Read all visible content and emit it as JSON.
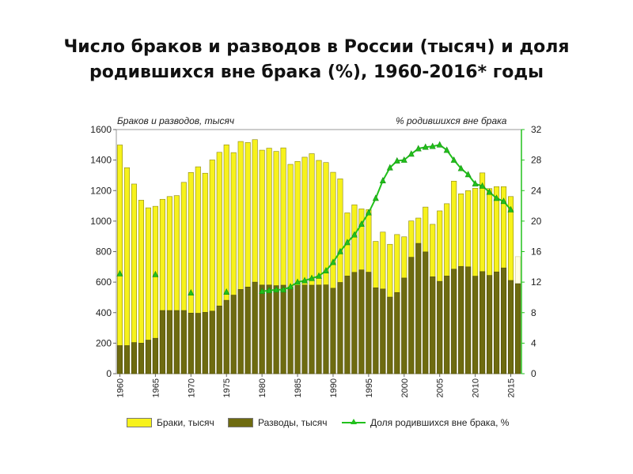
{
  "title_lines": [
    "Число браков и разводов в России (тысяч) и доля",
    "родившихся вне брака (%), 1960-2016* годы"
  ],
  "colors": {
    "marriages": "#f7f21c",
    "divorces": "#6e6b10",
    "share": "#22c01c",
    "estimate": "#fffde6"
  },
  "chart_data": {
    "type": "bar",
    "left_axis_title": "Браков и разводов, тысяч",
    "right_axis_title": "% родившихся вне брака",
    "ylim_left": [
      0,
      1600
    ],
    "yticks_left": [
      "0",
      "200",
      "400",
      "600",
      "800",
      "1000",
      "1200",
      "1400",
      "1600"
    ],
    "ylim_right": [
      0,
      32
    ],
    "yticks_right": [
      "0",
      "4",
      "8",
      "12",
      "16",
      "20",
      "24",
      "28",
      "32"
    ],
    "xtick_labels": [
      "1960",
      "1965",
      "1970",
      "1975",
      "1980",
      "1985",
      "1990",
      "1995",
      "2000",
      "2005",
      "2010",
      "2015"
    ],
    "years": [
      1960,
      1961,
      1962,
      1963,
      1964,
      1965,
      1966,
      1967,
      1968,
      1969,
      1970,
      1971,
      1972,
      1973,
      1974,
      1975,
      1976,
      1977,
      1978,
      1979,
      1980,
      1981,
      1982,
      1983,
      1984,
      1985,
      1986,
      1987,
      1988,
      1989,
      1990,
      1991,
      1992,
      1993,
      1994,
      1995,
      1996,
      1997,
      1998,
      1999,
      2000,
      2001,
      2002,
      2003,
      2004,
      2005,
      2006,
      2007,
      2008,
      2009,
      2010,
      2011,
      2012,
      2013,
      2014,
      2015,
      2016
    ],
    "series": [
      {
        "name": "Браки, тысяч",
        "values": [
          1499,
          1350,
          1243,
          1137,
          1087,
          1097,
          1143,
          1161,
          1167,
          1254,
          1319,
          1356,
          1314,
          1401,
          1451,
          1500,
          1449,
          1522,
          1515,
          1534,
          1465,
          1478,
          1457,
          1480,
          1372,
          1391,
          1419,
          1442,
          1398,
          1384,
          1320,
          1277,
          1054,
          1107,
          1080,
          1075,
          867,
          928,
          848,
          912,
          897,
          1001,
          1020,
          1092,
          979,
          1067,
          1114,
          1262,
          1179,
          1200,
          1215,
          1316,
          1213,
          1226,
          1226,
          1161,
          767
        ],
        "estimated_last": true
      },
      {
        "name": "Разводы, тысяч",
        "values": [
          184,
          184,
          204,
          200,
          220,
          232,
          414,
          414,
          414,
          414,
          397,
          396,
          402,
          410,
          444,
          481,
          515,
          552,
          568,
          600,
          581,
          581,
          577,
          580,
          567,
          578,
          581,
          580,
          581,
          582,
          560,
          598,
          640,
          664,
          680,
          665,
          563,
          555,
          502,
          532,
          627,
          763,
          854,
          798,
          635,
          605,
          640,
          685,
          703,
          700,
          639,
          669,
          644,
          667,
          693,
          611,
          590
        ]
      },
      {
        "name": "Доля родившихся вне брака, %",
        "points": [
          [
            1960,
            13.1
          ],
          [
            1965,
            13.0
          ],
          [
            1970,
            10.6
          ],
          [
            1975,
            10.7
          ],
          [
            1980,
            10.8
          ],
          [
            1981,
            10.9
          ],
          [
            1982,
            11.0
          ],
          [
            1983,
            11.0
          ],
          [
            1984,
            11.4
          ],
          [
            1985,
            12.0
          ],
          [
            1986,
            12.2
          ],
          [
            1987,
            12.5
          ],
          [
            1988,
            12.8
          ],
          [
            1989,
            13.5
          ],
          [
            1990,
            14.6
          ],
          [
            1991,
            16.0
          ],
          [
            1992,
            17.2
          ],
          [
            1993,
            18.2
          ],
          [
            1994,
            19.6
          ],
          [
            1995,
            21.1
          ],
          [
            1996,
            23.0
          ],
          [
            1997,
            25.3
          ],
          [
            1998,
            27.0
          ],
          [
            1999,
            27.9
          ],
          [
            2000,
            28.0
          ],
          [
            2001,
            28.8
          ],
          [
            2002,
            29.5
          ],
          [
            2003,
            29.7
          ],
          [
            2004,
            29.8
          ],
          [
            2005,
            30.0
          ],
          [
            2006,
            29.3
          ],
          [
            2007,
            28.0
          ],
          [
            2008,
            26.9
          ],
          [
            2009,
            26.1
          ],
          [
            2010,
            24.9
          ],
          [
            2011,
            24.6
          ],
          [
            2012,
            23.8
          ],
          [
            2013,
            23.0
          ],
          [
            2014,
            22.6
          ],
          [
            2015,
            21.5
          ]
        ]
      }
    ]
  },
  "legend": {
    "marriages": "Браки, тысяч",
    "divorces": "Разводы, тысяч",
    "share": "Доля родившихся вне брака, %"
  }
}
